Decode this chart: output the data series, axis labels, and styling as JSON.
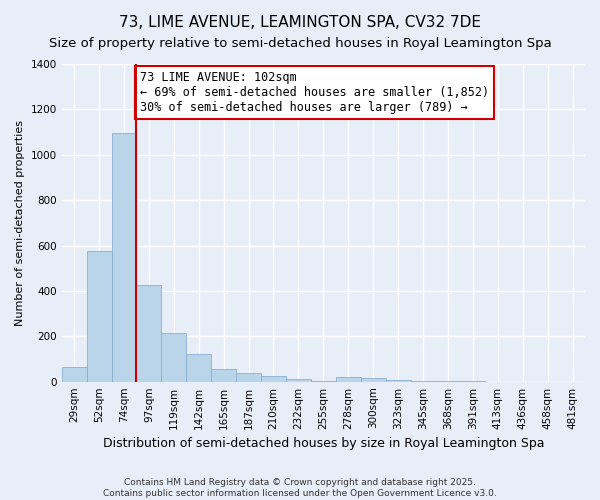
{
  "title": "73, LIME AVENUE, LEAMINGTON SPA, CV32 7DE",
  "subtitle": "Size of property relative to semi-detached houses in Royal Leamington Spa",
  "xlabel": "Distribution of semi-detached houses by size in Royal Leamington Spa",
  "ylabel": "Number of semi-detached properties",
  "bar_labels": [
    "29sqm",
    "52sqm",
    "74sqm",
    "97sqm",
    "119sqm",
    "142sqm",
    "165sqm",
    "187sqm",
    "210sqm",
    "232sqm",
    "255sqm",
    "278sqm",
    "300sqm",
    "323sqm",
    "345sqm",
    "368sqm",
    "391sqm",
    "413sqm",
    "436sqm",
    "458sqm",
    "481sqm"
  ],
  "bar_values": [
    65,
    575,
    1095,
    425,
    215,
    120,
    55,
    40,
    25,
    10,
    5,
    20,
    15,
    8,
    3,
    2,
    1,
    0,
    0,
    0,
    0
  ],
  "bar_color": "#bad4ea",
  "bar_edgecolor": "#8ab0d0",
  "vline_color": "#cc0000",
  "annotation_text": "73 LIME AVENUE: 102sqm\n← 69% of semi-detached houses are smaller (1,852)\n30% of semi-detached houses are larger (789) →",
  "annotation_box_color": "white",
  "annotation_box_edgecolor": "#cc0000",
  "ylim": [
    0,
    1400
  ],
  "yticks": [
    0,
    200,
    400,
    600,
    800,
    1000,
    1200,
    1400
  ],
  "background_color": "#e8eef8",
  "grid_color": "white",
  "footer1": "Contains HM Land Registry data © Crown copyright and database right 2025.",
  "footer2": "Contains public sector information licensed under the Open Government Licence v3.0.",
  "title_fontsize": 11,
  "subtitle_fontsize": 9.5,
  "xlabel_fontsize": 9,
  "ylabel_fontsize": 8,
  "tick_fontsize": 7.5,
  "annotation_fontsize": 8.5,
  "footer_fontsize": 6.5
}
